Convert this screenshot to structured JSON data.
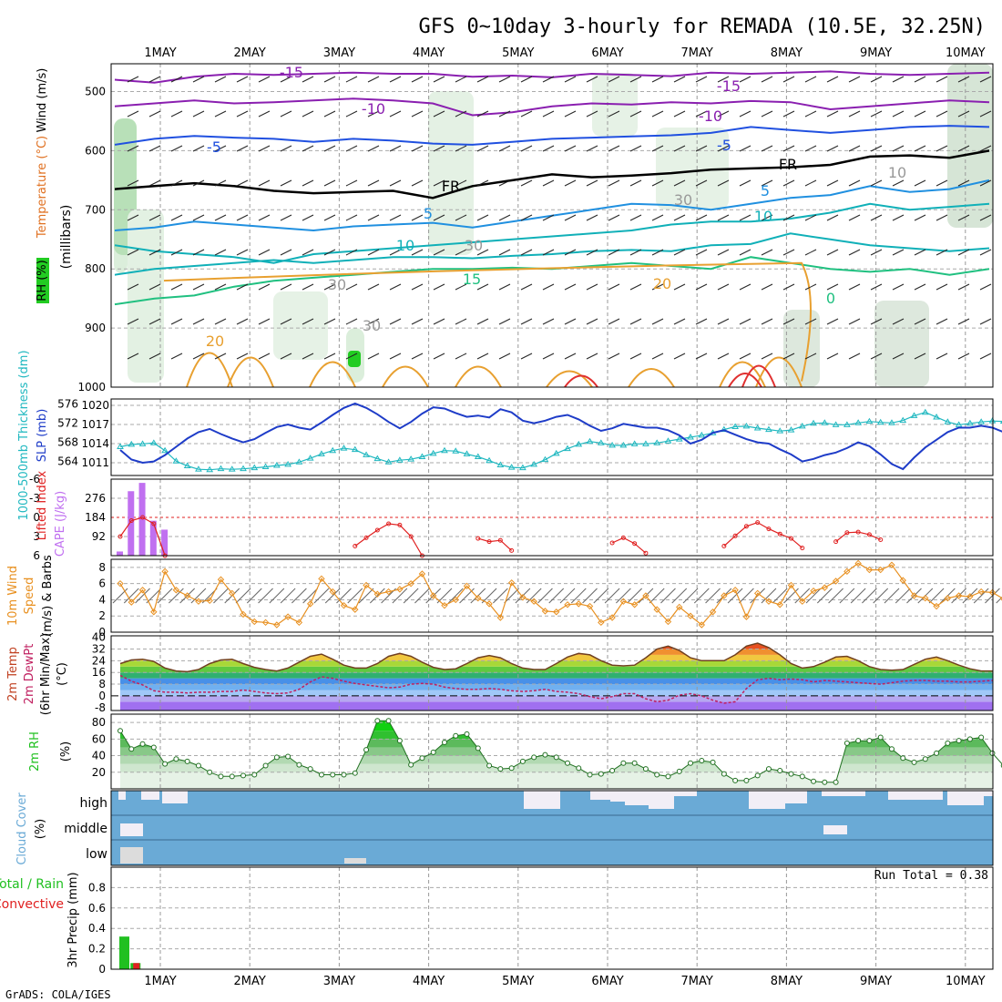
{
  "title": "GFS 0~10day 3-hourly for REMADA (10.5E, 32.25N)",
  "footer": "GrADS: COLA/IGES",
  "run_total": "Run Total = 0.38",
  "dates": [
    "1MAY",
    "2MAY",
    "3MAY",
    "4MAY",
    "5MAY",
    "6MAY",
    "7MAY",
    "8MAY",
    "9MAY",
    "10MAY"
  ],
  "colors": {
    "slp": "#1e3cc8",
    "thickness": "#20b8c0",
    "cape": "#c070f0",
    "lifted": "#e02020",
    "wind": "#e89020",
    "rh": "#20c020",
    "cloud": "#6aaad6",
    "cloud_clear": "#f2eef6",
    "precip_total": "#20c020",
    "precip_conv": "#e02020"
  },
  "panels": {
    "upper": {
      "label_rh": "RH (%)",
      "label_temp": "Temperature (°C)",
      "label_wind": "Wind (m/s)",
      "label_mb": "(millibars)",
      "yticks": [
        "500",
        "600",
        "700",
        "800",
        "900",
        "1000"
      ],
      "contour_labels": [
        "-15",
        "-15",
        "-10",
        "-10",
        "-5",
        "-5",
        "FR",
        "FR",
        "5",
        "5",
        "10",
        "10",
        "15",
        "20",
        "20",
        "30",
        "30",
        "30",
        "30",
        "10",
        "0"
      ]
    },
    "slp": {
      "label_thk": "1000-500mb Thickness (dm)",
      "label_slp": "SLP (mb)",
      "ticks_left": [
        "576",
        "572",
        "568",
        "564"
      ],
      "ticks_right": [
        "1020",
        "1017",
        "1014",
        "1011"
      ]
    },
    "cape": {
      "label_li": "Lifted Index",
      "label_cape": "CAPE (J/kg)",
      "ticks_left": [
        "-6",
        "-3",
        "0",
        "3",
        "6"
      ],
      "ticks_right": [
        "276",
        "184",
        "92"
      ]
    },
    "wind": {
      "label_10m": "10m Wind",
      "label_speed": "Speed",
      "label_barbs": "(m/s) & Barbs",
      "ticks": [
        "8",
        "6",
        "4",
        "2",
        "0"
      ]
    },
    "temp": {
      "label_temp": "2m Temp",
      "label_dewpt": "2m DewPt",
      "label_minmax": "(6hr Min/Max)",
      "label_unit": "(°C)",
      "ticks": [
        "40",
        "32",
        "24",
        "16",
        "8",
        "0",
        "-8"
      ]
    },
    "rh2m": {
      "label": "2m RH",
      "label_unit": "(%)",
      "ticks": [
        "80",
        "60",
        "40",
        "20"
      ]
    },
    "cloud": {
      "label": "Cloud Cover",
      "label_unit": "(%)",
      "levels": [
        "high",
        "middle",
        "low"
      ]
    },
    "precip": {
      "label_total": "Total / Rain",
      "label_conv": "Convective",
      "label_axis": "3hr Precip (mm)",
      "ticks": [
        "0.8",
        "0.6",
        "0.4",
        "0.2",
        "0"
      ]
    }
  },
  "chart_data": [
    {
      "type": "line",
      "panel": "slp",
      "name": "SLP (mb)",
      "x_step_hours": 3,
      "ylim": [
        1009,
        1021
      ],
      "values": [
        1013,
        1011.5,
        1011,
        1011.2,
        1012.2,
        1013.5,
        1014.8,
        1015.8,
        1016.3,
        1015.5,
        1014.8,
        1014.2,
        1014.7,
        1015.7,
        1016.6,
        1017,
        1016.5,
        1016.2,
        1017.3,
        1018.5,
        1019.6,
        1020.3,
        1019.6,
        1018.6,
        1017.4,
        1016.4,
        1017.4,
        1018.7,
        1019.7,
        1019.5,
        1018.8,
        1018.2,
        1018.4,
        1018.1,
        1019.4,
        1018.9,
        1017.6,
        1017.2,
        1017.6,
        1018.2,
        1018.5,
        1017.8,
        1016.8,
        1016,
        1016.4,
        1017.1,
        1016.8,
        1016.5,
        1016.5,
        1016.1,
        1015.3,
        1014,
        1014.6,
        1015.7,
        1016.1,
        1015.4,
        1014.7,
        1014.2,
        1014,
        1013.1,
        1012.3,
        1011.2,
        1011.6,
        1012.2,
        1012.6,
        1013.3,
        1014.2,
        1013.6,
        1012.3,
        1010.8,
        1010,
        1011.8,
        1013.4,
        1014.6,
        1015.8,
        1016.5,
        1016.5,
        1016.8,
        1016.5,
        1015.8,
        1014.5,
        1013.8,
        1014.4,
        1015,
        1014.6,
        1014.2,
        1014.3,
        1013.4,
        1012.8,
        1012.9
      ]
    },
    {
      "type": "line",
      "panel": "slp",
      "name": "1000-500mb Thickness (dm)",
      "x_step_hours": 3,
      "ylim": [
        561,
        577
      ],
      "values": [
        567,
        567.5,
        567.6,
        567.8,
        566.2,
        564,
        563,
        562.3,
        562.2,
        562.4,
        562.3,
        562.4,
        562.6,
        562.8,
        563.1,
        563.3,
        563.8,
        564.6,
        565.5,
        566.2,
        566.7,
        566.4,
        565.3,
        564.5,
        563.8,
        564.2,
        564.4,
        564.9,
        565.6,
        566.2,
        566.1,
        565.5,
        564.9,
        564.1,
        563.2,
        562.7,
        562.6,
        563.3,
        564.3,
        565.6,
        566.6,
        567.5,
        568.1,
        567.8,
        567.3,
        567.3,
        567.6,
        567.6,
        567.8,
        568.2,
        568.6,
        569,
        569.4,
        569.9,
        570.6,
        571.2,
        571.3,
        570.9,
        570.6,
        570.3,
        570.5,
        571.3,
        571.9,
        572,
        571.6,
        571.6,
        572,
        572.3,
        572.1,
        572,
        572.5,
        573.5,
        574.2,
        573.2,
        572.2,
        571.6,
        571.9,
        572.2,
        572.4,
        572.3,
        571.8,
        571.5,
        571.4,
        571.6,
        571.9,
        572,
        571.7,
        571.3,
        571.5,
        572
      ]
    },
    {
      "type": "line",
      "panel": "cape",
      "name": "Lifted Index",
      "x_step_hours": 3,
      "ylim": [
        6,
        -6
      ],
      "values": [
        3,
        0.5,
        0,
        1,
        6,
        null,
        null,
        null,
        null,
        null,
        null,
        null,
        null,
        null,
        null,
        null,
        null,
        null,
        null,
        null,
        null,
        4.5,
        3.2,
        2,
        1,
        1.2,
        3,
        6,
        null,
        null,
        null,
        null,
        3.3,
        3.8,
        3.6,
        5.2,
        null,
        null,
        null,
        null,
        null,
        null,
        null,
        null,
        4,
        3.2,
        4.1,
        5.6,
        null,
        null,
        null,
        null,
        null,
        null,
        4.5,
        2.9,
        1.4,
        0.8,
        1.8,
        2.6,
        3.3,
        4.8,
        null,
        null,
        3.8,
        2.4,
        2.3,
        2.7,
        3.5,
        null,
        null,
        null
      ]
    },
    {
      "type": "bar",
      "panel": "cape",
      "name": "CAPE (J/kg)",
      "x_step_hours": 3,
      "ylim": [
        0,
        368
      ],
      "values": [
        20,
        310,
        350,
        168,
        125
      ]
    },
    {
      "type": "line",
      "panel": "wind",
      "name": "10m Wind Speed (m/s)",
      "x_step_hours": 3,
      "ylim": [
        0,
        9
      ],
      "values": [
        6,
        3.7,
        5.2,
        2.5,
        7.5,
        5.2,
        4.5,
        3.8,
        3.9,
        6.5,
        4.8,
        2.2,
        1.3,
        1.2,
        0.9,
        1.9,
        1.2,
        3.5,
        6.6,
        5,
        3.3,
        2.8,
        5.8,
        4.7,
        5,
        5.3,
        6,
        7.2,
        4.5,
        3.3,
        4,
        5.7,
        4.2,
        3.5,
        1.8,
        6.1,
        4.3,
        3.8,
        2.6,
        2.5,
        3.4,
        3.5,
        3.2,
        1.2,
        1.8,
        3.8,
        3.4,
        4.5,
        2.8,
        1.3,
        3.1,
        2,
        0.9,
        2.5,
        4.5,
        5.2,
        1.9,
        4.8,
        3.8,
        3.4,
        5.8,
        3.8,
        5.1,
        5.5,
        6.3,
        7.5,
        8.5,
        7.7,
        7.7,
        8.3,
        6.4,
        4.5,
        4.2,
        3.2,
        4.2,
        4.5,
        4.4,
        5,
        4.9,
        4.1,
        5.1,
        4.3,
        4.2,
        1.3,
        2
      ]
    },
    {
      "type": "area",
      "panel": "temp",
      "name": "2m Temp (°C)",
      "x_step_hours": 3,
      "ylim": [
        -10,
        41
      ],
      "values": [
        22,
        24.5,
        25,
        23.5,
        19,
        17,
        16.5,
        18,
        22,
        24.5,
        25,
        22,
        19.5,
        18,
        17,
        19,
        23,
        27,
        28.5,
        25,
        21,
        19,
        19,
        22,
        27,
        29,
        27,
        23,
        19.5,
        18,
        18.5,
        22,
        26,
        27.5,
        26,
        22,
        19,
        18,
        18,
        22,
        26.5,
        29,
        28,
        24,
        21,
        20.5,
        21,
        26,
        32,
        34,
        31,
        26,
        24,
        24,
        24,
        28,
        34,
        36,
        33,
        28,
        22,
        19,
        20,
        23,
        26.5,
        27,
        24,
        20,
        18,
        17.5,
        18,
        21.5,
        25,
        26.5,
        24,
        21,
        18.5,
        17,
        17
      ]
    },
    {
      "type": "line",
      "panel": "temp",
      "name": "2m DewPt (°C)",
      "x_step_hours": 3,
      "ylim": [
        -10,
        41
      ],
      "values": [
        14,
        10,
        7.5,
        3.5,
        2.5,
        2.5,
        2,
        2.5,
        2.5,
        3,
        3,
        4,
        3,
        2,
        1.5,
        2,
        4.5,
        9.5,
        13,
        12,
        10,
        8.5,
        7.5,
        6.5,
        5.5,
        6,
        8,
        8.5,
        8,
        6,
        5,
        4.5,
        4.5,
        5,
        4.5,
        3.5,
        3,
        3.5,
        4.5,
        3,
        2.5,
        1.5,
        -0.5,
        -2,
        -0.5,
        1.5,
        1.5,
        -2,
        -4,
        -3,
        0.5,
        1.5,
        0,
        -3,
        -5,
        -4,
        5,
        11,
        12,
        11,
        11.5,
        11,
        9.5,
        10.5,
        10,
        9.5,
        9,
        8.5,
        8,
        9,
        10,
        10.5,
        10.5,
        10,
        10,
        9.5,
        9.5,
        10,
        10.5
      ]
    },
    {
      "type": "area",
      "panel": "rh2m",
      "name": "2m RH (%)",
      "x_step_hours": 3,
      "ylim": [
        0,
        90
      ],
      "values": [
        70,
        48,
        54,
        50,
        30,
        36,
        33,
        28,
        20,
        15,
        15,
        16,
        17,
        28,
        38,
        39,
        29,
        24,
        17,
        17,
        17,
        19,
        47,
        82,
        82,
        58,
        29,
        37,
        44,
        56,
        64,
        66,
        49,
        28,
        24,
        25,
        33,
        38,
        41,
        38,
        31,
        25,
        17,
        18,
        22,
        31,
        31,
        24,
        17,
        15,
        21,
        31,
        34,
        32,
        18,
        10,
        10,
        16,
        24,
        22,
        18,
        15,
        9,
        8,
        8,
        55,
        58,
        58,
        62,
        48,
        37,
        32,
        36,
        43,
        55,
        58,
        60,
        62,
        43,
        28,
        24,
        31,
        43,
        51,
        59,
        64,
        58
      ]
    },
    {
      "type": "bar",
      "panel": "cloud",
      "name": "Cloud Cover high/middle/low (%)",
      "x_step_hours": 3,
      "ylim": [
        0,
        100
      ],
      "levels": [
        "high",
        "middle",
        "low"
      ]
    },
    {
      "type": "bar",
      "panel": "precip",
      "name": "3hr Precip (mm)",
      "x_step_hours": 3,
      "ylim": [
        0,
        1
      ],
      "series": [
        {
          "name": "Total / Rain",
          "values": [
            0.32,
            0.06
          ]
        },
        {
          "name": "Convective",
          "values": [
            0,
            0.06
          ]
        }
      ]
    }
  ]
}
